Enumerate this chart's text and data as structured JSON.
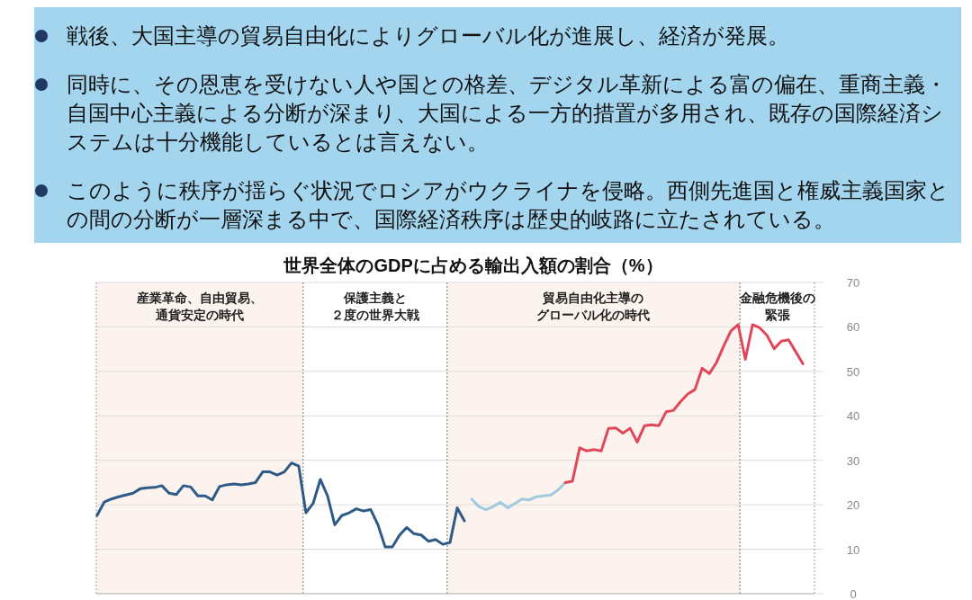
{
  "chart_data": {
    "type": "line",
    "title": "世界全体のGDPに占める輸出入額の割合（%）",
    "annotations": [
      "戦後、大国主導の貿易自由化によりグローバル化が進展し、経済が発展。",
      "同時に、その恩恵を受けない人や国との格差、デジタル革新による富の偏在、重商主義・自国中心主義による分断が深まり、大国による一方的措置が多用され、既存の国際経済システムは十分機能しているとは言えない。",
      "このように秩序が揺らぐ状況でロシアがウクライナを侵略。西側先進国と権威主義国家との間の分断が一層深まる中で、国際経済秩序は歴史的岐路に立たされている。",
      "産業革命、自由貿易、通貨安定の時代",
      "保護主義と２度の世界大戦",
      "貿易自由化主導のグローバル化の時代",
      "金融危機後の緊張"
    ],
    "categories": [
      null,
      null,
      null,
      null,
      null,
      null,
      null,
      null,
      null,
      null,
      null,
      null,
      null,
      null,
      null,
      null,
      null,
      null,
      null,
      null,
      null,
      null,
      null,
      null,
      null,
      null,
      null,
      null,
      null,
      null,
      null,
      null,
      null,
      null,
      null,
      null,
      null,
      null,
      null,
      null,
      null,
      null,
      null,
      null,
      null,
      null,
      null,
      null,
      null,
      null,
      null,
      null,
      null,
      null,
      null,
      null,
      null,
      null,
      null,
      null,
      null,
      null,
      null,
      null,
      null,
      null,
      null,
      null,
      null,
      null,
      null,
      null,
      null,
      null,
      null,
      null,
      null,
      null,
      null,
      null,
      null,
      null,
      null,
      null,
      null,
      null,
      null,
      null,
      null,
      null,
      null,
      null,
      null,
      null,
      null,
      null,
      null,
      null,
      null
    ],
    "series": [
      {
        "color": "#2e5a87",
        "values": [
          17.6,
          20.6,
          21.3,
          21.8,
          22.2,
          22.6,
          23.6,
          23.8,
          23.9,
          24.3,
          22.6,
          22.3,
          24.3,
          24.0,
          22.0,
          22.0,
          21.1,
          24.1,
          24.5,
          24.7,
          24.5,
          24.7,
          25.0,
          27.4,
          27.4,
          26.7,
          27.4,
          29.4,
          28.7,
          18.2,
          20.3,
          25.7,
          22.0,
          15.5,
          17.6,
          18.2,
          19.1,
          18.6,
          18.9,
          15.5,
          10.5,
          10.5,
          13.2,
          14.9,
          13.5,
          13.2,
          11.8,
          12.2,
          11.1,
          11.5,
          19.3,
          16.4,
          null,
          null,
          null,
          null,
          null,
          null,
          null,
          null,
          null,
          null,
          null,
          null,
          null,
          null,
          null,
          null,
          null,
          null,
          null,
          null,
          null,
          null,
          null,
          null,
          null,
          null,
          null,
          null,
          null,
          null,
          null,
          null,
          null,
          null,
          null,
          null,
          null,
          null,
          null,
          null,
          null,
          null,
          null,
          null,
          null,
          null,
          null
        ]
      },
      {
        "color": "#9fcbe0",
        "values": [
          null,
          null,
          null,
          null,
          null,
          null,
          null,
          null,
          null,
          null,
          null,
          null,
          null,
          null,
          null,
          null,
          null,
          null,
          null,
          null,
          null,
          null,
          null,
          null,
          null,
          null,
          null,
          null,
          null,
          null,
          null,
          null,
          null,
          null,
          null,
          null,
          null,
          null,
          null,
          null,
          null,
          null,
          null,
          null,
          null,
          null,
          null,
          null,
          null,
          null,
          null,
          null,
          21.3,
          19.6,
          18.9,
          19.6,
          20.6,
          19.3,
          20.3,
          21.3,
          21.1,
          21.8,
          22.0,
          22.2,
          23.3,
          25.0,
          null,
          null,
          null,
          null,
          null,
          null,
          null,
          null,
          null,
          null,
          null,
          null,
          null,
          null,
          null,
          null,
          null,
          null,
          null,
          null,
          null,
          null,
          null,
          null,
          null,
          null,
          null,
          null,
          null,
          null,
          null,
          null,
          null
        ]
      },
      {
        "color": "#e0485a",
        "values": [
          null,
          null,
          null,
          null,
          null,
          null,
          null,
          null,
          null,
          null,
          null,
          null,
          null,
          null,
          null,
          null,
          null,
          null,
          null,
          null,
          null,
          null,
          null,
          null,
          null,
          null,
          null,
          null,
          null,
          null,
          null,
          null,
          null,
          null,
          null,
          null,
          null,
          null,
          null,
          null,
          null,
          null,
          null,
          null,
          null,
          null,
          null,
          null,
          null,
          null,
          null,
          null,
          null,
          null,
          null,
          null,
          null,
          null,
          null,
          null,
          null,
          null,
          null,
          null,
          null,
          25.0,
          25.3,
          32.8,
          32.1,
          32.4,
          32.1,
          37.2,
          37.3,
          36.1,
          37.2,
          34.1,
          37.8,
          38.0,
          37.8,
          40.9,
          41.2,
          43.2,
          44.9,
          45.9,
          50.7,
          49.5,
          52.0,
          55.7,
          59.1,
          60.5,
          52.7,
          60.5,
          59.8,
          58.1,
          55.1,
          56.8,
          57.1,
          54.4,
          51.7
        ]
      }
    ],
    "ylim": [
      0,
      70
    ],
    "yticks": [
      0,
      10,
      20,
      30,
      40,
      50,
      60,
      70
    ],
    "grid": "y",
    "tick_labels": "y"
  }
}
